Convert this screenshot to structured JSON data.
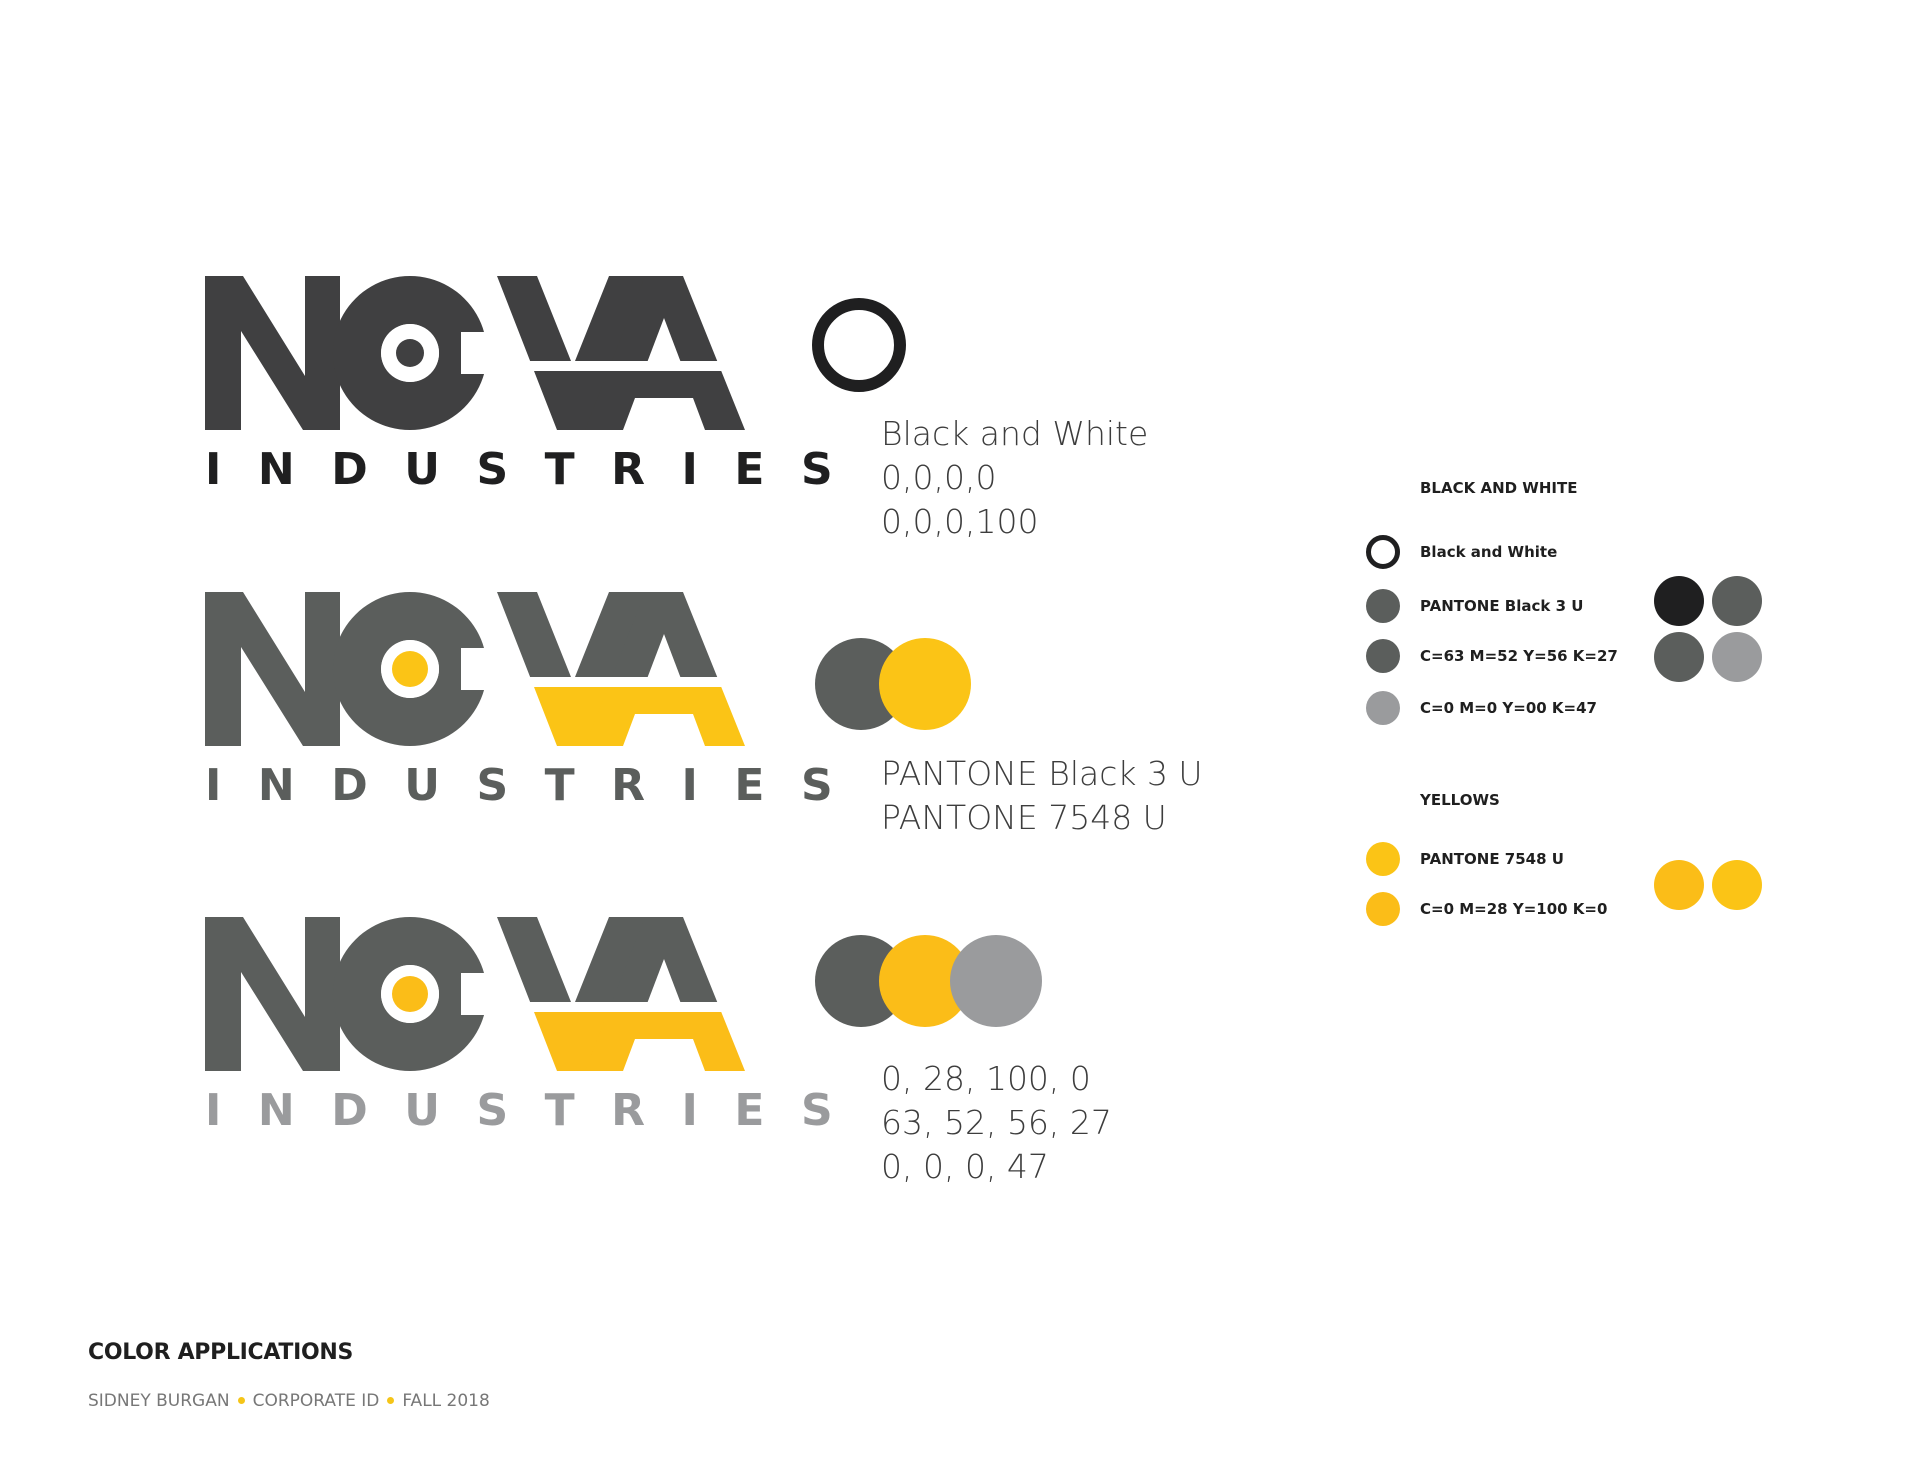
{
  "colors": {
    "black": "#1f1f20",
    "charcoal": "#404041",
    "gray_dark": "#5b5e5c",
    "gray_light": "#9a9b9d",
    "yellow": "#fbc416",
    "yellow_alt": "#fbbd18"
  },
  "logo": {
    "wordmark": "NOVA",
    "subline": "INDUSTRIES"
  },
  "applications": [
    {
      "spec_lines": [
        "Black and White",
        "0,0,0,0",
        "0,0,0,100"
      ]
    },
    {
      "spec_lines": [
        "PANTONE Black 3 U",
        "PANTONE 7548 U"
      ]
    },
    {
      "spec_lines": [
        "0, 28, 100, 0",
        "63, 52, 56, 27",
        "0, 0, 0, 47"
      ]
    }
  ],
  "legend": {
    "bw_heading": "BLACK AND WHITE",
    "bw_items": [
      "Black and White",
      "PANTONE Black 3 U",
      "C=63  M=52  Y=56  K=27",
      "C=0  M=0  Y=00  K=47"
    ],
    "yellow_heading": "YELLOWS",
    "yellow_items": [
      "PANTONE 7548 U",
      "C=0  M=28  Y=100  K=0"
    ]
  },
  "footer": {
    "title": "COLOR APPLICATIONS",
    "author": "SIDNEY BURGAN",
    "course": "CORPORATE ID",
    "term": "FALL 2018"
  }
}
